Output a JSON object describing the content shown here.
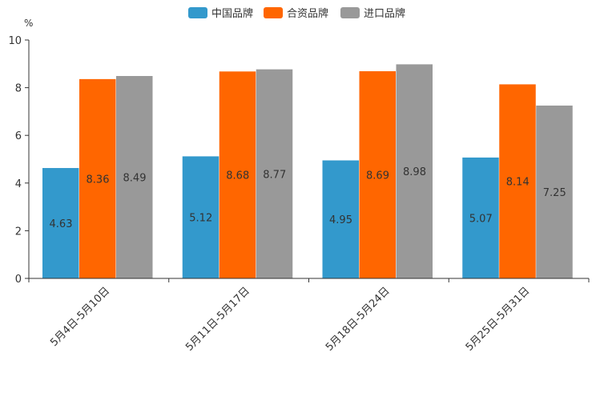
{
  "chart_data": {
    "type": "bar",
    "title": "",
    "ylabel": "%",
    "xlabel": "",
    "ylim": [
      0,
      10
    ],
    "yticks": [
      0,
      2,
      4,
      6,
      8,
      10
    ],
    "grid": false,
    "legend_position": "top-center",
    "categories": [
      "5月4日-5月10日",
      "5月11日-5月17日",
      "5月18日-5月24日",
      "5月25日-5月31日"
    ],
    "series": [
      {
        "name": "中国品牌",
        "color": "#3399cc",
        "values": [
          4.63,
          5.12,
          4.95,
          5.07
        ]
      },
      {
        "name": "合资品牌",
        "color": "#ff6600",
        "values": [
          8.36,
          8.68,
          8.69,
          8.14
        ]
      },
      {
        "name": "进口品牌",
        "color": "#999999",
        "values": [
          8.49,
          8.77,
          8.98,
          7.25
        ]
      }
    ]
  }
}
